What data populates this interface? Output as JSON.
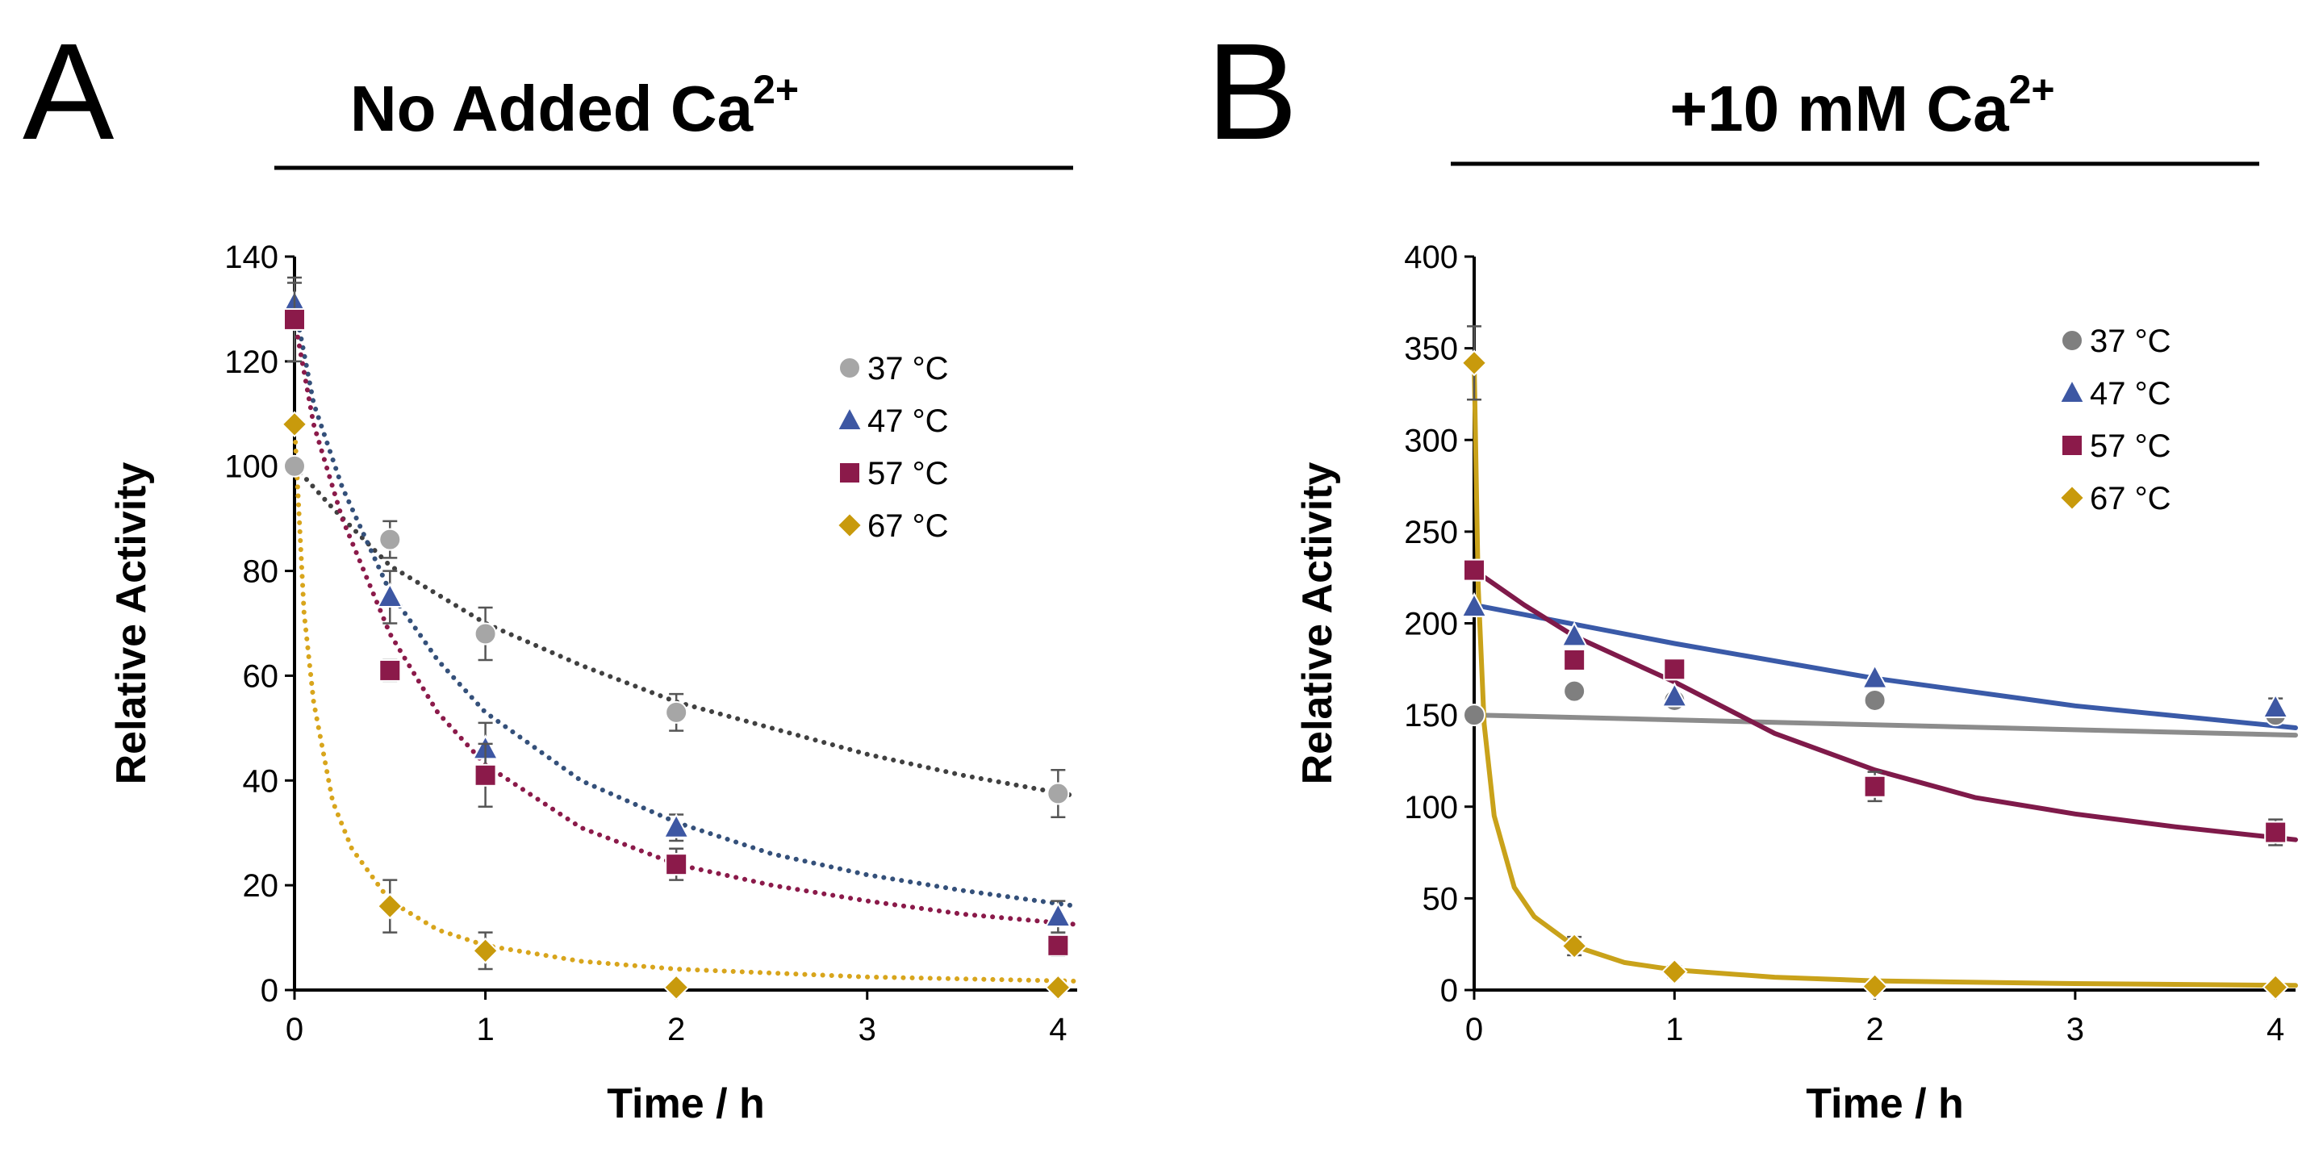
{
  "chart_data": [
    {
      "panel": "A",
      "type": "scatter",
      "title": "No Added Ca",
      "title_sup": "2+",
      "xlabel": "Time / h",
      "ylabel": "Relative Activity",
      "xlim": [
        0,
        4.1
      ],
      "ylim": [
        0,
        140
      ],
      "xticks": [
        0,
        1,
        2,
        3,
        4
      ],
      "yticks": [
        0,
        20,
        40,
        60,
        80,
        100,
        120,
        140
      ],
      "fit_style": "dotted",
      "series": [
        {
          "name": "37 °C",
          "marker": "circle",
          "color": "#a6a6a6",
          "fit_color": "#404040",
          "x": [
            0,
            0.5,
            1,
            2,
            4
          ],
          "y": [
            100,
            86,
            68,
            53,
            37.5
          ],
          "err": [
            0,
            3.5,
            5,
            3.5,
            4.5
          ],
          "fit": {
            "x": [
              0,
              0.2,
              0.5,
              1,
              1.5,
              2,
              2.5,
              3,
              3.5,
              4.1
            ],
            "y": [
              100,
              92,
              81,
              70,
              62,
              55,
              50,
              45,
              41,
              37
            ]
          }
        },
        {
          "name": "47 °C",
          "marker": "triangle",
          "color": "#3d57a3",
          "fit_color": "#34507a",
          "x": [
            0,
            0.5,
            1,
            2,
            4
          ],
          "y": [
            131,
            75,
            46,
            31,
            14
          ],
          "err": [
            4,
            5,
            5,
            2.5,
            3
          ],
          "fit": {
            "x": [
              0,
              0.1,
              0.25,
              0.5,
              0.75,
              1,
              1.5,
              2,
              2.5,
              3,
              3.5,
              4.1
            ],
            "y": [
              131,
              112,
              96,
              76,
              63,
              53,
              40,
              32,
              26,
              22,
              19,
              16
            ]
          }
        },
        {
          "name": "57 °C",
          "marker": "square",
          "color": "#8b1a4a",
          "fit_color": "#8b1a4a",
          "x": [
            0,
            0.5,
            1,
            2,
            4
          ],
          "y": [
            128,
            61,
            41,
            24,
            8.5
          ],
          "err": [
            8,
            2,
            6,
            3,
            2
          ],
          "fit": {
            "x": [
              0,
              0.1,
              0.25,
              0.5,
              0.75,
              1,
              1.5,
              2,
              2.5,
              3,
              3.5,
              4.1
            ],
            "y": [
              128,
              108,
              90,
              68,
              53,
              43,
              31,
              24,
              20,
              17,
              14.5,
              12.5
            ]
          }
        },
        {
          "name": "67 °C",
          "marker": "diamond",
          "color": "#c89a0c",
          "fit_color": "#d8a51c",
          "x": [
            0,
            0.5,
            1,
            2,
            4
          ],
          "y": [
            108,
            16,
            7.5,
            0.5,
            0.5
          ],
          "err": [
            0,
            5,
            3.5,
            0,
            0
          ],
          "fit": {
            "x": [
              0,
              0.05,
              0.1,
              0.2,
              0.3,
              0.5,
              0.75,
              1,
              1.5,
              2,
              3,
              4.1
            ],
            "y": [
              108,
              72,
              55,
              36,
              27,
              17,
              11.5,
              8.5,
              5.5,
              4,
              2.5,
              1.7
            ]
          }
        }
      ]
    },
    {
      "panel": "B",
      "type": "scatter",
      "title": "+10 mM Ca",
      "title_sup": "2+",
      "xlabel": "Time / h",
      "ylabel": "Relative Activity",
      "xlim": [
        0,
        4.1
      ],
      "ylim": [
        0,
        400
      ],
      "xticks": [
        0,
        1,
        2,
        3,
        4
      ],
      "yticks": [
        0,
        50,
        100,
        150,
        200,
        250,
        300,
        350,
        400
      ],
      "fit_style": "solid",
      "series": [
        {
          "name": "37 °C",
          "marker": "circle",
          "color": "#7f7f7f",
          "fit_color": "#8c8c8c",
          "x": [
            0,
            0.5,
            1,
            2,
            4
          ],
          "y": [
            150,
            163,
            158,
            158,
            150
          ],
          "err": [
            0,
            0,
            0,
            0,
            0
          ],
          "fit": {
            "x": [
              0,
              4.1
            ],
            "y": [
              150,
              139
            ]
          }
        },
        {
          "name": "47 °C",
          "marker": "triangle",
          "color": "#3d57a3",
          "fit_color": "#3a5aa8",
          "x": [
            0,
            0.5,
            1,
            2,
            4
          ],
          "y": [
            209,
            193,
            160,
            170,
            154
          ],
          "err": [
            0,
            0,
            0,
            0,
            5
          ],
          "fit": {
            "x": [
              0,
              1,
              2,
              3,
              4.1
            ],
            "y": [
              210,
              189,
              170,
              155,
              143
            ]
          }
        },
        {
          "name": "57 °C",
          "marker": "square",
          "color": "#8b1a4a",
          "fit_color": "#7f1a4a",
          "x": [
            0,
            0.5,
            1,
            2,
            4
          ],
          "y": [
            229,
            180,
            175,
            111,
            86
          ],
          "err": [
            0,
            0,
            0,
            8,
            7
          ],
          "fit": {
            "x": [
              0,
              0.25,
              0.5,
              1,
              1.5,
              2,
              2.5,
              3,
              3.5,
              4.1
            ],
            "y": [
              229,
              210,
              193,
              168,
              140,
              120,
              105,
              96,
              89,
              82
            ]
          }
        },
        {
          "name": "67 °C",
          "marker": "diamond",
          "color": "#c89a0c",
          "fit_color": "#c9a21a",
          "x": [
            0,
            0.5,
            1,
            2,
            4
          ],
          "y": [
            342,
            24,
            10,
            2,
            1.5
          ],
          "err": [
            20,
            5,
            3,
            0,
            0
          ],
          "fit": {
            "x": [
              0,
              0.02,
              0.05,
              0.1,
              0.2,
              0.3,
              0.5,
              0.75,
              1,
              1.5,
              2,
              3,
              4.1
            ],
            "y": [
              342,
              220,
              145,
              95,
              56,
              40,
              24,
              15,
              11,
              7,
              5,
              3.5,
              2.5
            ]
          }
        }
      ]
    }
  ]
}
